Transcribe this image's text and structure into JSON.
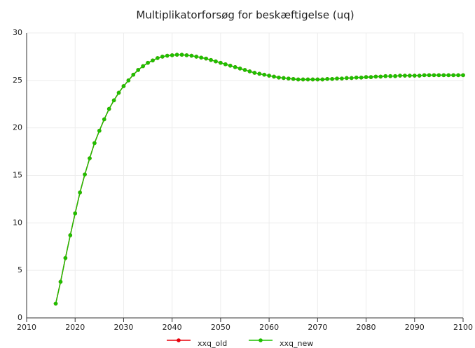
{
  "chart_data": {
    "type": "line",
    "title": "Multiplikatorforsøg for beskæftigelse (uq)",
    "x": [
      2016,
      2017,
      2018,
      2019,
      2020,
      2021,
      2022,
      2023,
      2024,
      2025,
      2026,
      2027,
      2028,
      2029,
      2030,
      2031,
      2032,
      2033,
      2034,
      2035,
      2036,
      2037,
      2038,
      2039,
      2040,
      2041,
      2042,
      2043,
      2044,
      2045,
      2046,
      2047,
      2048,
      2049,
      2050,
      2051,
      2052,
      2053,
      2054,
      2055,
      2056,
      2057,
      2058,
      2059,
      2060,
      2061,
      2062,
      2063,
      2064,
      2065,
      2066,
      2067,
      2068,
      2069,
      2070,
      2071,
      2072,
      2073,
      2074,
      2075,
      2076,
      2077,
      2078,
      2079,
      2080,
      2081,
      2082,
      2083,
      2084,
      2085,
      2086,
      2087,
      2088,
      2089,
      2090,
      2091,
      2092,
      2093,
      2094,
      2095,
      2096,
      2097,
      2098,
      2099,
      2100
    ],
    "series": [
      {
        "name": "xxq_old",
        "color": "#e8000b",
        "values": [
          1.5,
          3.8,
          6.3,
          8.7,
          11.0,
          13.2,
          15.1,
          16.8,
          18.4,
          19.7,
          20.9,
          22.0,
          22.9,
          23.7,
          24.4,
          25.0,
          25.6,
          26.1,
          26.5,
          26.85,
          27.1,
          27.35,
          27.5,
          27.6,
          27.65,
          27.7,
          27.7,
          27.65,
          27.6,
          27.5,
          27.4,
          27.3,
          27.15,
          27.0,
          26.85,
          26.7,
          26.55,
          26.4,
          26.25,
          26.1,
          25.95,
          25.8,
          25.7,
          25.6,
          25.5,
          25.4,
          25.3,
          25.25,
          25.2,
          25.15,
          25.1,
          25.1,
          25.1,
          25.1,
          25.1,
          25.1,
          25.15,
          25.15,
          25.2,
          25.2,
          25.25,
          25.25,
          25.3,
          25.3,
          25.35,
          25.35,
          25.4,
          25.4,
          25.45,
          25.45,
          25.45,
          25.5,
          25.5,
          25.5,
          25.5,
          25.5,
          25.55,
          25.55,
          25.55,
          25.55,
          25.55,
          25.55,
          25.55,
          25.55,
          25.55
        ]
      },
      {
        "name": "xxq_new",
        "color": "#1fbf00",
        "values": [
          1.5,
          3.8,
          6.3,
          8.7,
          11.0,
          13.2,
          15.1,
          16.8,
          18.4,
          19.7,
          20.9,
          22.0,
          22.9,
          23.7,
          24.4,
          25.0,
          25.6,
          26.1,
          26.5,
          26.85,
          27.1,
          27.35,
          27.5,
          27.6,
          27.65,
          27.7,
          27.7,
          27.65,
          27.6,
          27.5,
          27.4,
          27.3,
          27.15,
          27.0,
          26.85,
          26.7,
          26.55,
          26.4,
          26.25,
          26.1,
          25.95,
          25.8,
          25.7,
          25.6,
          25.5,
          25.4,
          25.3,
          25.25,
          25.2,
          25.15,
          25.1,
          25.1,
          25.1,
          25.1,
          25.1,
          25.1,
          25.15,
          25.15,
          25.2,
          25.2,
          25.25,
          25.25,
          25.3,
          25.3,
          25.35,
          25.35,
          25.4,
          25.4,
          25.45,
          25.45,
          25.45,
          25.5,
          25.5,
          25.5,
          25.5,
          25.5,
          25.55,
          25.55,
          25.55,
          25.55,
          25.55,
          25.55,
          25.55,
          25.55,
          25.55
        ]
      }
    ],
    "xlim": [
      2010,
      2100
    ],
    "xticks": [
      2010,
      2020,
      2030,
      2040,
      2050,
      2060,
      2070,
      2080,
      2090,
      2100
    ],
    "ylim": [
      0,
      30
    ],
    "yticks": [
      0,
      5,
      10,
      15,
      20,
      25,
      30
    ],
    "grid": true,
    "legend": "bottom"
  }
}
